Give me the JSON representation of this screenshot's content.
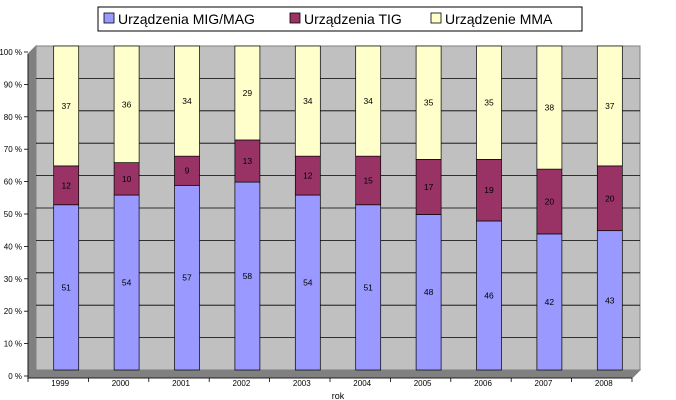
{
  "chart_data": {
    "type": "bar",
    "stacked": true,
    "percent": true,
    "categories": [
      "1999",
      "2000",
      "2001",
      "2002",
      "2003",
      "2004",
      "2005",
      "2006",
      "2007",
      "2008"
    ],
    "series": [
      {
        "name": "Urządzenia MIG/MAG",
        "values": [
          51,
          54,
          57,
          58,
          54,
          51,
          48,
          46,
          42,
          43
        ],
        "color": "#9999ff"
      },
      {
        "name": "Urządzenia TIG",
        "values": [
          12,
          10,
          9,
          13,
          12,
          15,
          17,
          19,
          20,
          20
        ],
        "color": "#993366"
      },
      {
        "name": "Urządzenie MMA",
        "values": [
          37,
          36,
          34,
          29,
          34,
          34,
          35,
          35,
          38,
          37
        ],
        "color": "#ffffcc"
      }
    ],
    "ylim": [
      0,
      100
    ],
    "yticks": [
      "0 %",
      "10 %",
      "20 %",
      "30 %",
      "40 %",
      "50 %",
      "60 %",
      "70 %",
      "80 %",
      "90 %",
      "100 %"
    ],
    "xlabel": "rok",
    "ylabel": "",
    "grid": true,
    "legend_position": "top",
    "plot_background": "#c0c0c0"
  }
}
